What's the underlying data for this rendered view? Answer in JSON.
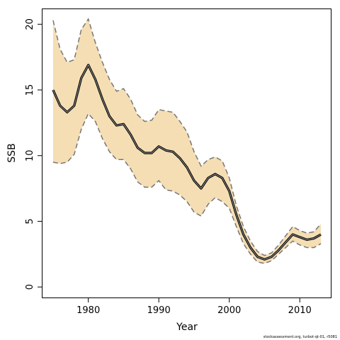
{
  "chart_data": {
    "type": "line",
    "title": "",
    "xlabel": "Year",
    "ylabel": "SSB",
    "footnote": "stockassessment.org, turbot-qt-01, r5081",
    "xlim": [
      1973.5,
      2014.5
    ],
    "ylim": [
      -0.8,
      21.2
    ],
    "xticks": [
      1980,
      1990,
      2000,
      2010
    ],
    "yticks": [
      0,
      5,
      10,
      15,
      20
    ],
    "colors": {
      "band_fill": "#f5deb3",
      "estimate_line": "#000000",
      "estimate_inner": "#999999",
      "bound_line": "#777777"
    },
    "x": [
      1975,
      1976,
      1977,
      1978,
      1979,
      1980,
      1981,
      1982,
      1983,
      1984,
      1985,
      1986,
      1987,
      1988,
      1989,
      1990,
      1991,
      1992,
      1993,
      1994,
      1995,
      1996,
      1997,
      1998,
      1999,
      2000,
      2001,
      2002,
      2003,
      2004,
      2005,
      2006,
      2007,
      2008,
      2009,
      2010,
      2011,
      2012,
      2013
    ],
    "series": [
      {
        "role": "estimate",
        "values": [
          15.0,
          13.8,
          13.3,
          13.8,
          15.9,
          16.9,
          15.8,
          14.3,
          13.0,
          12.3,
          12.4,
          11.6,
          10.6,
          10.2,
          10.2,
          10.7,
          10.4,
          10.3,
          9.8,
          9.1,
          8.1,
          7.5,
          8.3,
          8.6,
          8.3,
          7.3,
          5.5,
          4.0,
          3.0,
          2.3,
          2.1,
          2.3,
          2.8,
          3.4,
          4.0,
          3.8,
          3.6,
          3.7,
          4.0
        ]
      },
      {
        "role": "upper-bound",
        "values": [
          20.3,
          18.1,
          17.1,
          17.3,
          19.6,
          20.4,
          18.6,
          17.1,
          15.8,
          14.9,
          15.1,
          14.3,
          13.1,
          12.6,
          12.7,
          13.5,
          13.4,
          13.3,
          12.6,
          11.8,
          10.3,
          9.2,
          9.7,
          9.9,
          9.6,
          8.3,
          6.2,
          4.6,
          3.5,
          2.7,
          2.4,
          2.6,
          3.2,
          3.9,
          4.6,
          4.3,
          4.1,
          4.2,
          4.8
        ]
      },
      {
        "role": "lower-bound",
        "values": [
          9.5,
          9.4,
          9.5,
          10.1,
          12.0,
          13.2,
          12.6,
          11.3,
          10.3,
          9.7,
          9.7,
          9.0,
          8.0,
          7.6,
          7.6,
          8.1,
          7.4,
          7.3,
          7.0,
          6.5,
          5.7,
          5.4,
          6.3,
          6.8,
          6.5,
          6.0,
          4.6,
          3.3,
          2.5,
          1.9,
          1.8,
          2.0,
          2.5,
          3.0,
          3.5,
          3.2,
          3.0,
          3.0,
          3.3
        ]
      }
    ],
    "grid": false,
    "legend": "none"
  }
}
